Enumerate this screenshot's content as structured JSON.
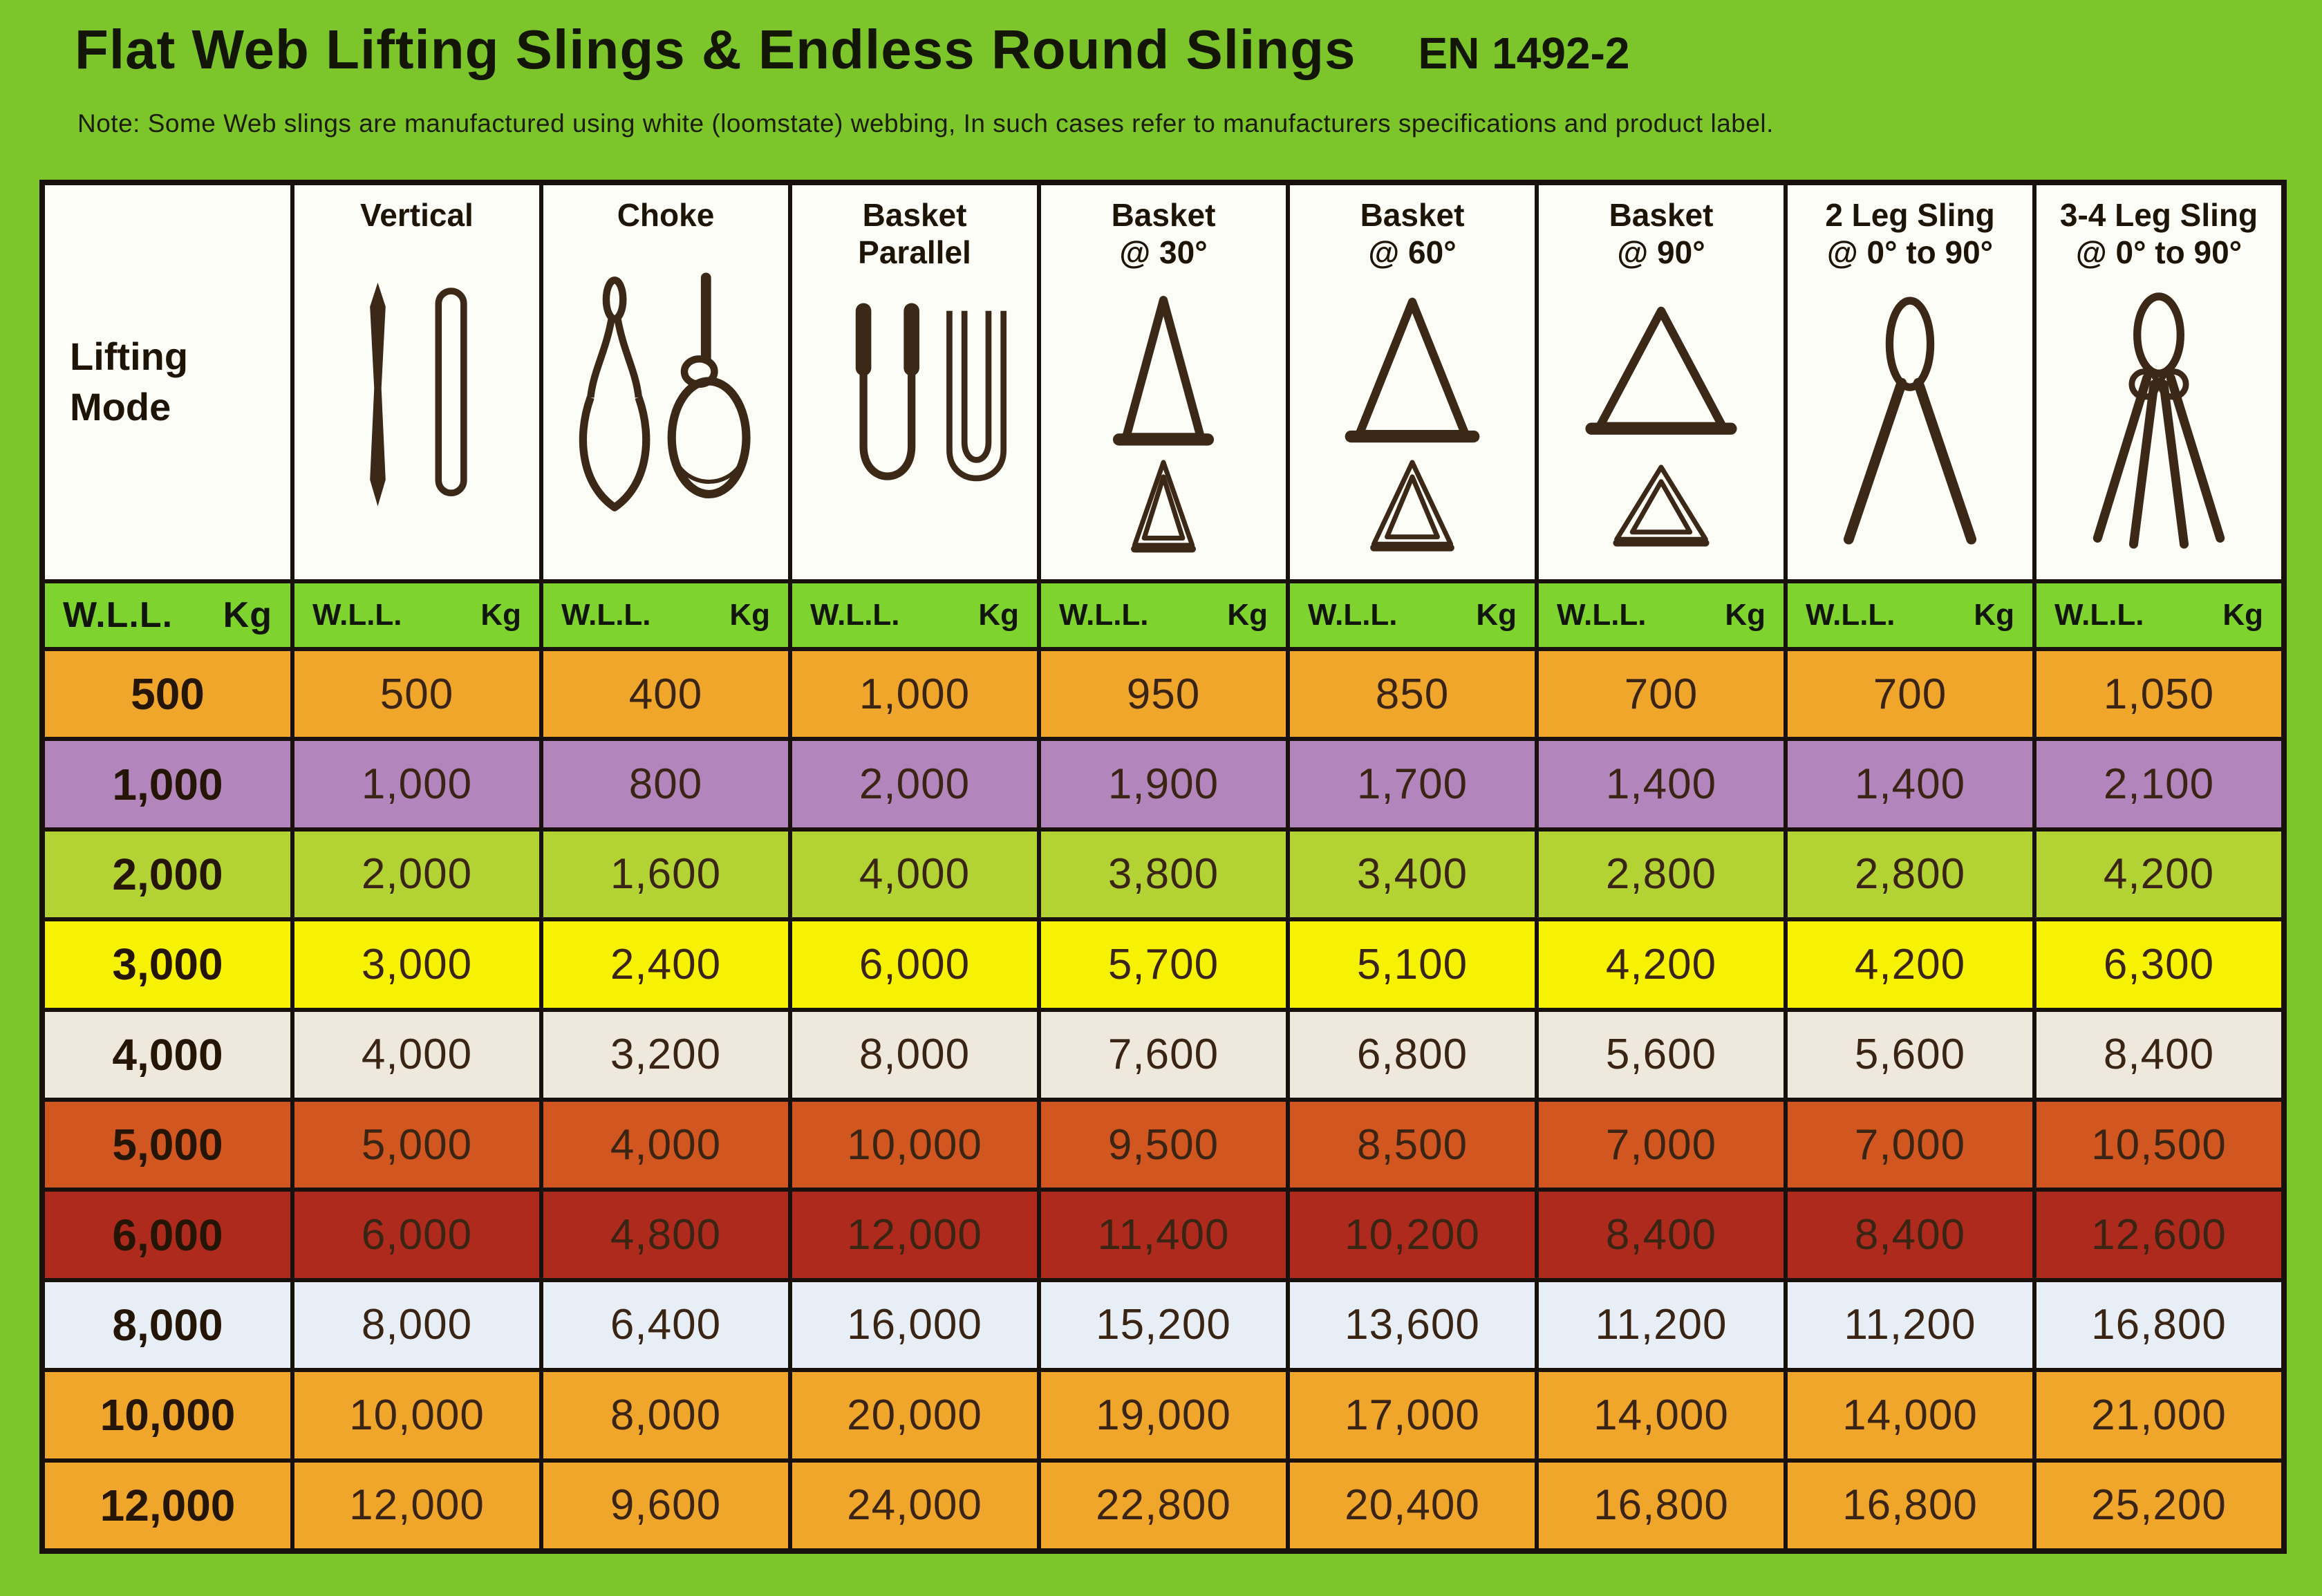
{
  "page": {
    "title": "Flat Web Lifting Slings & Endless Round Slings",
    "standard": "EN 1492-2",
    "note": "Note: Some Web slings are manufactured using white (loomstate) webbing, In such cases refer to manufacturers specifications and product label."
  },
  "labels": {
    "corner": "Lifting\nMode",
    "wll": "W.L.L.",
    "kg": "Kg"
  },
  "colors": {
    "background": "#7CC62B",
    "grid_line": "#18100A",
    "header_bg": "#FDFDF8",
    "unit_row_bg": "#7ED32E",
    "icon": "#3B2817",
    "text": "#3A2413"
  },
  "chart_data": {
    "type": "table",
    "title": "Flat Web Lifting Slings & Endless Round Slings",
    "standard": "EN 1492-2",
    "columns": [
      {
        "label": "Vertical",
        "icon": "vertical-slings-icon"
      },
      {
        "label": "Choke",
        "icon": "choke-slings-icon"
      },
      {
        "label": "Basket\nParallel",
        "icon": "basket-parallel-icon"
      },
      {
        "label": "Basket\n@ 30°",
        "icon": "basket-30-icon"
      },
      {
        "label": "Basket\n@ 60°",
        "icon": "basket-60-icon"
      },
      {
        "label": "Basket\n@ 90°",
        "icon": "basket-90-icon"
      },
      {
        "label": "2 Leg Sling\n@ 0° to 90°",
        "icon": "two-leg-sling-icon"
      },
      {
        "label": "3-4 Leg Sling\n@ 0° to 90°",
        "icon": "three-four-leg-sling-icon"
      }
    ],
    "unit": "Kg",
    "rows": [
      {
        "wll": "500",
        "row_color": "#F0A62A",
        "values": [
          "500",
          "400",
          "1,000",
          "950",
          "850",
          "700",
          "700",
          "1,050"
        ]
      },
      {
        "wll": "1,000",
        "row_color": "#B286BD",
        "values": [
          "1,000",
          "800",
          "2,000",
          "1,900",
          "1,700",
          "1,400",
          "1,400",
          "2,100"
        ]
      },
      {
        "wll": "2,000",
        "row_color": "#B2D333",
        "values": [
          "2,000",
          "1,600",
          "4,000",
          "3,800",
          "3,400",
          "2,800",
          "2,800",
          "4,200"
        ]
      },
      {
        "wll": "3,000",
        "row_color": "#F7F203",
        "values": [
          "3,000",
          "2,400",
          "6,000",
          "5,700",
          "5,100",
          "4,200",
          "4,200",
          "6,300"
        ]
      },
      {
        "wll": "4,000",
        "row_color": "#EFE9DD",
        "values": [
          "4,000",
          "3,200",
          "8,000",
          "7,600",
          "6,800",
          "5,600",
          "5,600",
          "8,400"
        ]
      },
      {
        "wll": "5,000",
        "row_color": "#D2561F",
        "values": [
          "5,000",
          "4,000",
          "10,000",
          "9,500",
          "8,500",
          "7,000",
          "7,000",
          "10,500"
        ]
      },
      {
        "wll": "6,000",
        "row_color": "#AE2A1C",
        "values": [
          "6,000",
          "4,800",
          "12,000",
          "11,400",
          "10,200",
          "8,400",
          "8,400",
          "12,600"
        ]
      },
      {
        "wll": "8,000",
        "row_color": "#E7EEF6",
        "values": [
          "8,000",
          "6,400",
          "16,000",
          "15,200",
          "13,600",
          "11,200",
          "11,200",
          "16,800"
        ]
      },
      {
        "wll": "10,000",
        "row_color": "#F0A62A",
        "values": [
          "10,000",
          "8,000",
          "20,000",
          "19,000",
          "17,000",
          "14,000",
          "14,000",
          "21,000"
        ]
      },
      {
        "wll": "12,000",
        "row_color": "#F0A62A",
        "values": [
          "12,000",
          "9,600",
          "24,000",
          "22,800",
          "20,400",
          "16,800",
          "16,800",
          "25,200"
        ]
      }
    ]
  }
}
